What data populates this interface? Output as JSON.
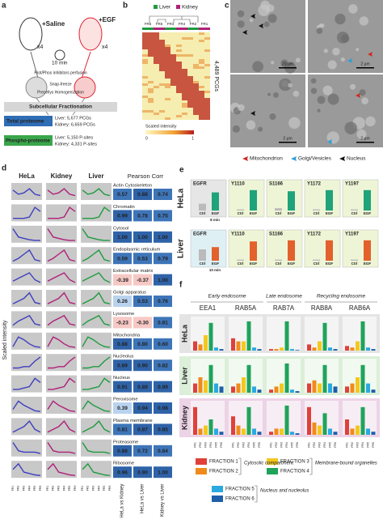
{
  "panel_a": {
    "label": "a",
    "saline": "+Saline",
    "egf": "+EGF",
    "count_saline": "x4",
    "count_egf": "x4",
    "time": "10 min",
    "step1": "Prot/Phos inhibitors perfusion",
    "step2": "Snap-freeze",
    "step3": "Precellys Homogenization",
    "fractionation": "Subcellular Fractionation",
    "total_proteome": "Total proteome",
    "total_liver": "Liver: 5,677 PCGs",
    "total_kidney": "Kidney: 6,659 PCGs",
    "phospho_proteome": "Phospho-proteome",
    "phospho_liver": "Liver: 5,150 P-sites",
    "phospho_kidney": "Kidney: 4,331 P-sites"
  },
  "panel_b": {
    "label": "b",
    "legend": [
      "Liver",
      "Kidney"
    ],
    "columns": [
      "FR6",
      "FR5",
      "FR3",
      "FR4",
      "FR2",
      "FR1"
    ],
    "count": "4,489 PCGs",
    "scale_title": "Scaled intensity",
    "scale_min": "0",
    "scale_max": "1"
  },
  "panel_c": {
    "label": "c",
    "scale_bars": [
      "20 µm",
      "2 µm",
      "2 µm",
      "2 µm"
    ],
    "legend": [
      "Mitochondrion",
      "Golgi/Vesicles",
      "Nucleus"
    ]
  },
  "panel_d": {
    "label": "d",
    "tissues": [
      "HeLa",
      "Kidney",
      "Liver"
    ],
    "corr_title": "Pearson Corr",
    "y_label": "Scaled intensity",
    "fractions": [
      "FR1",
      "FR2",
      "FR3",
      "FR4",
      "FR5",
      "FR6"
    ],
    "comparisons": [
      "HeLa vs Kidney",
      "HeLa vs Liver",
      "Kidney vs Liver"
    ],
    "rows": [
      {
        "name": "Actin Cytoskeleton",
        "corr": [
          "0.57",
          "0.88",
          "0.74"
        ],
        "profile": [
          0.6,
          0.3,
          0.4,
          0.7,
          0.3,
          0.2
        ]
      },
      {
        "name": "Chromatin",
        "corr": [
          "0.99",
          "0.78",
          "0.75"
        ],
        "profile": [
          0.1,
          0.1,
          0.1,
          0.2,
          0.9,
          0.6
        ]
      },
      {
        "name": "Cytosol",
        "corr": [
          "1.00",
          "1.00",
          "1.00"
        ],
        "profile": [
          0.9,
          0.3,
          0.2,
          0.1,
          0.05,
          0.05
        ]
      },
      {
        "name": "Endoplasmic reticulum",
        "corr": [
          "0.59",
          "0.53",
          "0.79"
        ],
        "profile": [
          0.1,
          0.3,
          0.6,
          0.9,
          0.2,
          0.1
        ]
      },
      {
        "name": "Extracellular matrix",
        "corr": [
          "-0.39",
          "-0.37",
          "1.00"
        ],
        "profile": [
          0.2,
          0.4,
          0.6,
          0.8,
          0.3,
          0.1
        ]
      },
      {
        "name": "Golgi apparatus",
        "corr": [
          "0.26",
          "0.53",
          "0.76"
        ],
        "profile": [
          0.1,
          0.3,
          0.5,
          0.9,
          0.2,
          0.1
        ]
      },
      {
        "name": "Lysosome",
        "corr": [
          "-0.23",
          "-0.30",
          "0.81"
        ],
        "profile": [
          0.1,
          0.4,
          0.6,
          0.8,
          0.2,
          0.1
        ]
      },
      {
        "name": "Mitochondria",
        "corr": [
          "0.88",
          "0.80",
          "0.60"
        ],
        "profile": [
          0.1,
          0.8,
          0.6,
          0.3,
          0.1,
          0.05
        ]
      },
      {
        "name": "Nucleolus",
        "corr": [
          "0.89",
          "0.90",
          "0.82"
        ],
        "profile": [
          0.1,
          0.1,
          0.2,
          0.2,
          0.6,
          0.9
        ]
      },
      {
        "name": "Nucleus",
        "corr": [
          "0.91",
          "0.89",
          "0.99"
        ],
        "profile": [
          0.1,
          0.1,
          0.2,
          0.3,
          0.9,
          0.6
        ]
      },
      {
        "name": "Peroxisome",
        "corr": [
          "0.39",
          "0.94",
          "0.98"
        ],
        "profile": [
          0.2,
          0.8,
          0.5,
          0.3,
          0.1,
          0.05
        ]
      },
      {
        "name": "Plasma membrane",
        "corr": [
          "0.81",
          "0.87",
          "0.85"
        ],
        "profile": [
          0.1,
          0.3,
          0.5,
          0.9,
          0.3,
          0.1
        ]
      },
      {
        "name": "Proteasome",
        "corr": [
          "0.88",
          "0.72",
          "0.84"
        ],
        "profile": [
          0.9,
          0.3,
          0.2,
          0.2,
          0.2,
          0.1
        ]
      },
      {
        "name": "Ribosome",
        "corr": [
          "0.96",
          "0.90",
          "1.00"
        ],
        "profile": [
          0.5,
          0.9,
          0.3,
          0.2,
          0.1,
          0.05
        ]
      }
    ]
  },
  "panel_e": {
    "label": "e",
    "conditions": [
      "Ctrl",
      "EGF"
    ],
    "rows": [
      {
        "name": "HeLa",
        "time": "8 min",
        "color": "#1fa37a",
        "panels": [
          {
            "target": "EGFR",
            "values": [
              0.3,
              0.8
            ]
          },
          {
            "target": "Y1110",
            "values": [
              0.05,
              0.9
            ]
          },
          {
            "target": "S1166",
            "values": [
              0.1,
              0.85
            ]
          },
          {
            "target": "Y1172",
            "values": [
              0.05,
              0.9
            ]
          },
          {
            "target": "Y1197",
            "values": [
              0.05,
              0.9
            ]
          }
        ]
      },
      {
        "name": "Liver",
        "time": "10 min",
        "color": "#e2612c",
        "panels": [
          {
            "target": "EGFR",
            "values": [
              0.5,
              0.6
            ]
          },
          {
            "target": "Y1110",
            "values": [
              0.05,
              0.85
            ]
          },
          {
            "target": "S1166",
            "values": [
              0.05,
              0.9
            ]
          },
          {
            "target": "Y1172",
            "values": [
              0.05,
              0.9
            ]
          },
          {
            "target": "Y1197",
            "values": [
              0.05,
              0.9
            ]
          }
        ]
      }
    ]
  },
  "panel_f": {
    "label": "f",
    "groups": [
      "Early endosome",
      "Late endosome",
      "Recycling endosome"
    ],
    "proteins": [
      "EEA1",
      "RAB5A",
      "RAB7A",
      "RAB8A",
      "RAB6A"
    ],
    "fraction_ticks": [
      "FR1",
      "FR2",
      "FR3",
      "FR4",
      "FR5",
      "FR6"
    ],
    "tissues": [
      {
        "name": "HeLa",
        "color": "#555555",
        "bg": "#e4e4e4",
        "values": [
          [
            0.3,
            0.2,
            0.5,
            0.9,
            0.1,
            0.05
          ],
          [
            0.4,
            0.3,
            0.3,
            0.95,
            0.1,
            0.05
          ],
          [
            0.05,
            0.05,
            0.1,
            0.95,
            0.05,
            0.02
          ],
          [
            0.2,
            0.1,
            0.3,
            0.9,
            0.1,
            0.05
          ],
          [
            0.15,
            0.1,
            0.3,
            0.95,
            0.1,
            0.05
          ]
        ]
      },
      {
        "name": "Liver",
        "color": "#1f9b3f",
        "bg": "#dcefd9",
        "values": [
          [
            0.3,
            0.5,
            0.4,
            0.9,
            0.3,
            0.2
          ],
          [
            0.2,
            0.3,
            0.5,
            0.9,
            0.2,
            0.1
          ],
          [
            0.1,
            0.2,
            0.3,
            0.95,
            0.1,
            0.05
          ],
          [
            0.3,
            0.4,
            0.3,
            0.9,
            0.3,
            0.2
          ],
          [
            0.2,
            0.3,
            0.5,
            0.9,
            0.3,
            0.1
          ]
        ]
      },
      {
        "name": "Kidney",
        "color": "#b0207a",
        "bg": "#ecd3e6",
        "values": [
          [
            0.9,
            0.2,
            0.3,
            0.5,
            0.2,
            0.1
          ],
          [
            0.6,
            0.3,
            0.2,
            0.9,
            0.2,
            0.1
          ],
          [
            0.1,
            0.2,
            0.2,
            0.95,
            0.1,
            0.05
          ],
          [
            0.9,
            0.4,
            0.3,
            0.7,
            0.2,
            0.1
          ],
          [
            0.5,
            0.2,
            0.3,
            0.9,
            0.2,
            0.1
          ]
        ]
      }
    ],
    "legend": [
      {
        "name": "FRACTION 1",
        "color": "#e0403a"
      },
      {
        "name": "FRACTION 2",
        "color": "#f08a1c"
      },
      {
        "name": "FRACTION 3",
        "color": "#f2c81f"
      },
      {
        "name": "FRACTION 4",
        "color": "#1fa35b"
      },
      {
        "name": "FRACTION 5",
        "color": "#2aa9e0"
      },
      {
        "name": "FRACTION 6",
        "color": "#1f5fa8"
      }
    ],
    "compartments": [
      "Cytosolic compartment",
      "Membrane-bound organelles",
      "Nucleus and nucleolus"
    ]
  }
}
